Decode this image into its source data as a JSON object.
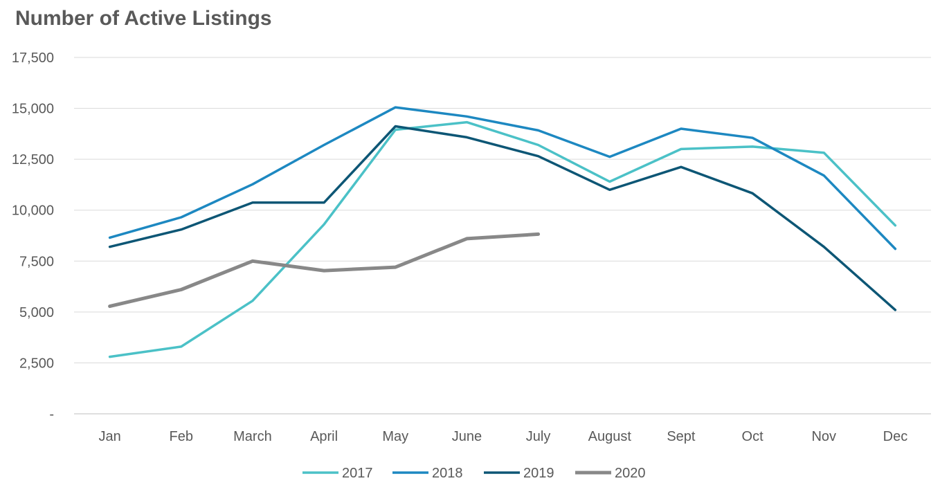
{
  "chart_data": {
    "type": "line",
    "title": "Number of Active Listings",
    "categories": [
      "Jan",
      "Feb",
      "March",
      "April",
      "May",
      "June",
      "July",
      "August",
      "Sept",
      "Oct",
      "Nov",
      "Dec"
    ],
    "ylim": [
      0,
      17500
    ],
    "yticks": [
      0,
      2500,
      5000,
      7500,
      10000,
      12500,
      15000,
      17500
    ],
    "ytick_labels": [
      "-",
      "2,500",
      "5,000",
      "7,500",
      "10,000",
      "12,500",
      "15,000",
      "17,500"
    ],
    "grid": true,
    "legend_position": "bottom",
    "series": [
      {
        "name": "2017",
        "color": "#4bc1c7",
        "values": [
          2800,
          3300,
          5550,
          9300,
          13950,
          14320,
          13200,
          11400,
          13000,
          13120,
          12820,
          9250
        ]
      },
      {
        "name": "2018",
        "color": "#1d88c1",
        "values": [
          8650,
          9650,
          11270,
          13200,
          15050,
          14600,
          13920,
          12620,
          14000,
          13550,
          11700,
          8100
        ]
      },
      {
        "name": "2019",
        "color": "#0d5675",
        "values": [
          8200,
          9050,
          10370,
          10370,
          14120,
          13580,
          12650,
          11000,
          12120,
          10830,
          8200,
          5100
        ]
      },
      {
        "name": "2020",
        "color": "#888888",
        "values": [
          5280,
          6100,
          7500,
          7030,
          7200,
          8600,
          8820,
          null,
          null,
          null,
          null,
          null
        ]
      }
    ]
  }
}
